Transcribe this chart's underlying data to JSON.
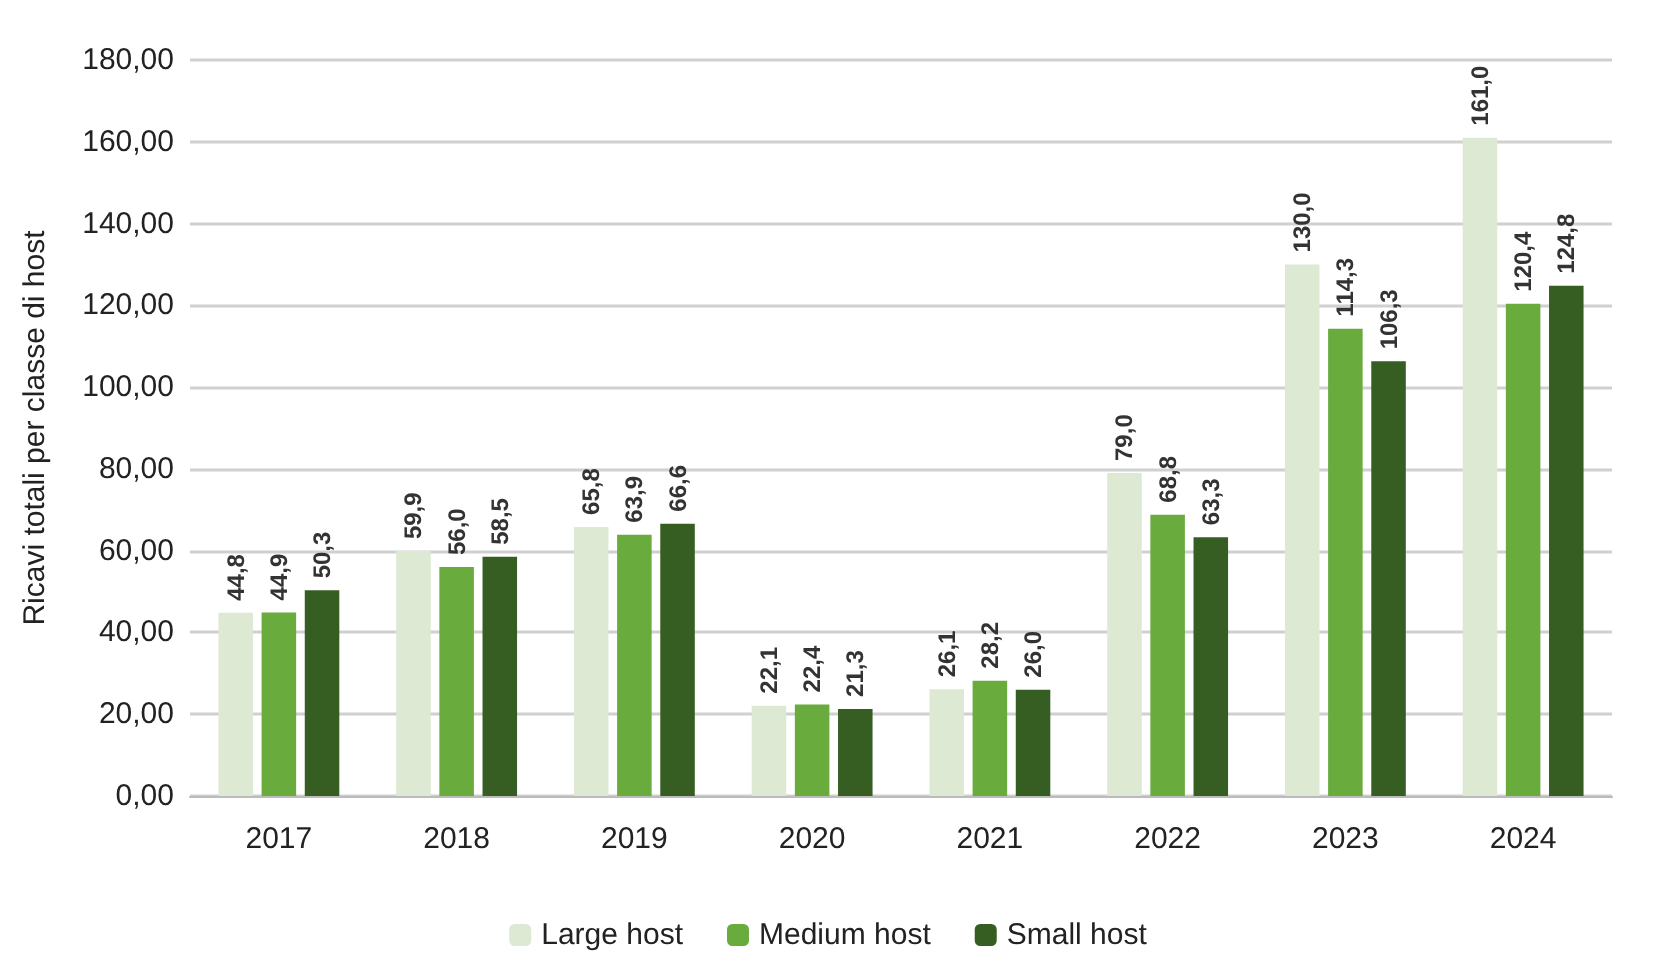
{
  "chart_data": {
    "type": "bar",
    "ylabel": "Ricavi totali per classe di host",
    "categories": [
      "2017",
      "2018",
      "2019",
      "2020",
      "2021",
      "2022",
      "2023",
      "2024"
    ],
    "series": [
      {
        "name": "Large host",
        "color": "#dde9d3",
        "values": [
          44.8,
          59.9,
          65.8,
          22.1,
          26.1,
          79.0,
          130.0,
          161.0
        ],
        "value_labels": [
          "44,8",
          "59,9",
          "65,8",
          "22,1",
          "26,1",
          "79,0",
          "130,0",
          "161,0"
        ]
      },
      {
        "name": "Medium host",
        "color": "#6aab3d",
        "values": [
          44.9,
          56.0,
          63.9,
          22.4,
          28.2,
          68.8,
          114.3,
          120.4
        ],
        "value_labels": [
          "44,9",
          "56,0",
          "63,9",
          "22,4",
          "28,2",
          "68,8",
          "114,3",
          "120,4"
        ]
      },
      {
        "name": "Small host",
        "color": "#365e22",
        "values": [
          50.3,
          58.5,
          66.6,
          21.3,
          26.0,
          63.3,
          106.3,
          124.8
        ],
        "value_labels": [
          "50,3",
          "58,5",
          "66,6",
          "21,3",
          "26,0",
          "63,3",
          "106,3",
          "124,8"
        ]
      }
    ],
    "ylim": [
      0,
      180
    ],
    "yticks": [
      {
        "value": 0,
        "label": "0,00"
      },
      {
        "value": 20,
        "label": "20,00"
      },
      {
        "value": 40,
        "label": "40,00"
      },
      {
        "value": 60,
        "label": "60,00"
      },
      {
        "value": 80,
        "label": "80,00"
      },
      {
        "value": 100,
        "label": "100,00"
      },
      {
        "value": 120,
        "label": "120,00"
      },
      {
        "value": 140,
        "label": "140,00"
      },
      {
        "value": 160,
        "label": "160,00"
      },
      {
        "value": 180,
        "label": "180,00"
      }
    ],
    "grid": "y",
    "legend": "bottom"
  }
}
